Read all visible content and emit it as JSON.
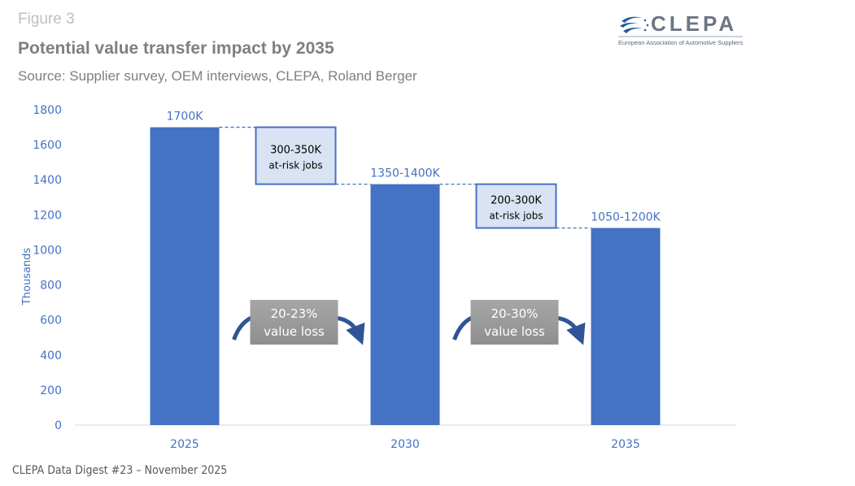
{
  "header": {
    "figure_label": "Figure 3",
    "title": "Potential value transfer impact by 2035",
    "source": "Source: Supplier survey, OEM interviews, CLEPA, Roland Berger"
  },
  "logo": {
    "wordmark": "CLEPA",
    "subtitle": "European Association of Automotive Suppliers",
    "icon": "clepa-swoosh-stars-icon"
  },
  "footer": {
    "text": "CLEPA Data Digest #23 – November 2025"
  },
  "colors": {
    "bar": "#4472c4",
    "axis_text": "#4472c4",
    "callout_fill": "#dae3f3",
    "callout_border": "#4472c4",
    "loss_box": "#9e9e9e",
    "arrow": "#2f5597"
  },
  "chart_data": {
    "type": "bar",
    "title": "Potential value transfer impact by 2035",
    "xlabel": "",
    "ylabel": "Thousands",
    "ylim": [
      0,
      1800
    ],
    "yticks": [
      0,
      200,
      400,
      600,
      800,
      1000,
      1200,
      1400,
      1600,
      1800
    ],
    "grid": false,
    "categories": [
      "2025",
      "2030",
      "2035"
    ],
    "values": [
      1700,
      1375,
      1125
    ],
    "data_labels": [
      "1700K",
      "1350-1400K",
      "1050-1200K"
    ],
    "annotations": [
      {
        "type": "callout",
        "between": [
          "2025",
          "2030"
        ],
        "lines": [
          "300-350K",
          "at-risk jobs"
        ]
      },
      {
        "type": "callout",
        "between": [
          "2030",
          "2035"
        ],
        "lines": [
          "200-300K",
          "at-risk jobs"
        ]
      },
      {
        "type": "loss-arrow",
        "between": [
          "2025",
          "2030"
        ],
        "lines": [
          "20-23%",
          "value loss"
        ]
      },
      {
        "type": "loss-arrow",
        "between": [
          "2030",
          "2035"
        ],
        "lines": [
          "20-30%",
          "value loss"
        ]
      }
    ]
  }
}
